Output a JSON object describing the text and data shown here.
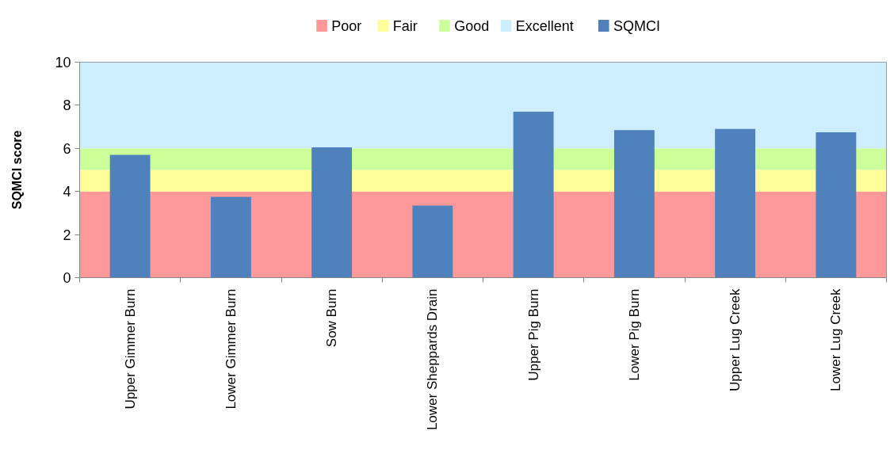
{
  "chart_data": {
    "type": "bar",
    "ylabel": "SQMCI score",
    "categories": [
      "Upper Gimmer Burn",
      "Lower Gimmer Burn",
      "Sow Burn",
      "Lower Sheppards Drain",
      "Upper Pig Burn",
      "Lower Pig Burn",
      "Upper Lug Creek",
      "Lower Lug Creek"
    ],
    "series": [
      {
        "name": "SQMCI",
        "color": "#4f81bd",
        "values": [
          5.7,
          3.75,
          6.05,
          3.35,
          7.7,
          6.85,
          6.9,
          6.75
        ]
      }
    ],
    "bands": [
      {
        "axis": "y",
        "from": 0,
        "to": 4,
        "label": "Poor",
        "color": "#ff9999"
      },
      {
        "axis": "y",
        "from": 4,
        "to": 5,
        "label": "Fair",
        "color": "#ffff99"
      },
      {
        "axis": "y",
        "from": 5,
        "to": 6,
        "label": "Good",
        "color": "#ccff99"
      },
      {
        "axis": "y",
        "from": 6,
        "to": 10,
        "label": "Excellent",
        "color": "#cceeff"
      }
    ],
    "ylim": [
      0,
      10
    ],
    "yticks": [
      0,
      2,
      4,
      6,
      8,
      10
    ],
    "legend": "top",
    "grid": false
  }
}
